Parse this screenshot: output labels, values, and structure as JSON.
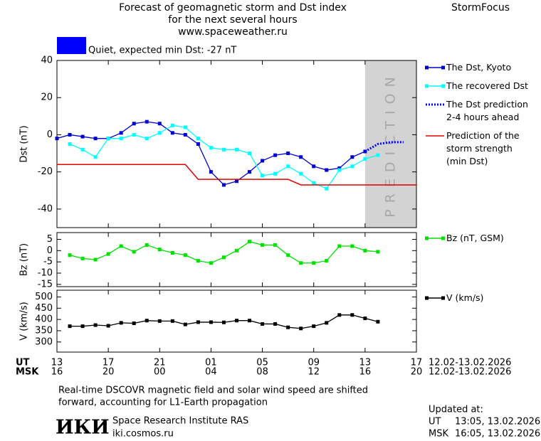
{
  "header": {
    "title_lines": [
      "Forecast of geomagnetic storm and Dst index",
      "for the next several hours",
      "www.spaceweather.ru"
    ],
    "brand": "StormFocus",
    "status": "Quiet, expected min Dst: -27 nT",
    "status_color": "#0000ff"
  },
  "chart_data": [
    {
      "type": "line",
      "y_label": "Dst (nT)",
      "xlim": [
        0,
        28
      ],
      "xticks": [
        0,
        4,
        8,
        12,
        16,
        20,
        24,
        28
      ],
      "ylim": [
        -50,
        40
      ],
      "yticks": [
        -40,
        -20,
        0,
        20,
        40
      ],
      "region": [
        24,
        28
      ],
      "region_color": "#d3d3d3",
      "region_label": "PREDICTION",
      "series": [
        {
          "name": "The Dst, Kyoto",
          "color": "#0000cc",
          "markers": true,
          "x": [
            0,
            1,
            2,
            3,
            4,
            5,
            6,
            7,
            8,
            9,
            10,
            11,
            12,
            13,
            14,
            15,
            16,
            17,
            18,
            19,
            20,
            21,
            22,
            23,
            24
          ],
          "values": [
            -2,
            0,
            -1,
            -2,
            -2,
            1,
            6,
            7,
            6,
            1,
            0,
            -5,
            -20,
            -27,
            -25,
            -20,
            -14,
            -11,
            -10,
            -12,
            -17,
            -19,
            -18,
            -12,
            -9
          ]
        },
        {
          "name": "The recovered Dst",
          "color": "#00ffff",
          "markers": true,
          "x": [
            1,
            2,
            3,
            4,
            5,
            6,
            7,
            8,
            9,
            10,
            11,
            12,
            13,
            14,
            15,
            16,
            17,
            18,
            19,
            20,
            21,
            22,
            23,
            24,
            25
          ],
          "values": [
            -5,
            -8,
            -12,
            -2,
            -2,
            0,
            -2,
            1,
            5,
            4,
            -2,
            -7,
            -8,
            -8,
            -10,
            -22,
            -21,
            -17,
            -21,
            -26,
            -29,
            -19,
            -17,
            -13,
            -11
          ]
        },
        {
          "name": "The Dst prediction 2-4 hours ahead",
          "color": "#0000ff",
          "markers": false,
          "dash": "2,2",
          "width": 3,
          "x": [
            24,
            25,
            26,
            27
          ],
          "values": [
            -9,
            -5,
            -4,
            -4
          ]
        },
        {
          "name": "Prediction of the storm strength (min Dst)",
          "color": "#e00000",
          "markers": false,
          "width": 1.5,
          "x": [
            0,
            10,
            11,
            18,
            19,
            28
          ],
          "values": [
            -16,
            -16,
            -24,
            -24,
            -27,
            -27
          ]
        }
      ]
    },
    {
      "type": "line",
      "y_label": "Bz (nT)",
      "xlim": [
        0,
        28
      ],
      "xticks": [
        0,
        4,
        8,
        12,
        16,
        20,
        24,
        28
      ],
      "ylim": [
        -16,
        8
      ],
      "yticks": [
        -15,
        -10,
        -5,
        0,
        5
      ],
      "series": [
        {
          "name": "Bz (nT, GSM)",
          "color": "#00e000",
          "markers": true,
          "x": [
            1,
            2,
            3,
            4,
            5,
            6,
            7,
            8,
            9,
            10,
            11,
            12,
            13,
            14,
            15,
            16,
            17,
            18,
            19,
            20,
            21,
            22,
            23,
            24,
            25
          ],
          "values": [
            -2,
            -3.5,
            -4,
            -1.5,
            2,
            -0.5,
            2.5,
            0.5,
            -1,
            -2,
            -4.5,
            -5.5,
            -3,
            0,
            4,
            2.5,
            2.5,
            -2,
            -5.5,
            -5.5,
            -4.5,
            2,
            2,
            0,
            -0.5
          ]
        }
      ]
    },
    {
      "type": "line",
      "y_label": "V (km/s)",
      "xlim": [
        0,
        28
      ],
      "xticks": [
        {
          "value": 0,
          "label": "13"
        },
        {
          "value": 4,
          "label": "17"
        },
        {
          "value": 8,
          "label": "21"
        },
        {
          "value": 12,
          "label": "01"
        },
        {
          "value": 16,
          "label": "05"
        },
        {
          "value": 20,
          "label": "09"
        },
        {
          "value": 24,
          "label": "13"
        },
        {
          "value": 28,
          "label": "17"
        }
      ],
      "xticks_msk": [
        {
          "value": 0,
          "label": "16"
        },
        {
          "value": 4,
          "label": "20"
        },
        {
          "value": 8,
          "label": "00"
        },
        {
          "value": 12,
          "label": "04"
        },
        {
          "value": 16,
          "label": "08"
        },
        {
          "value": 20,
          "label": "12"
        },
        {
          "value": 24,
          "label": "16"
        },
        {
          "value": 28,
          "label": "20"
        }
      ],
      "x_label": "UT",
      "x_label_msk": "MSK",
      "date_range": "12.02-13.02.2026",
      "date_range_msk": "12.02-13.02.2026",
      "ylim": [
        255,
        530
      ],
      "yticks": [
        300,
        350,
        400,
        450,
        500
      ],
      "series": [
        {
          "name": "V (km/s)",
          "color": "#000000",
          "markers": true,
          "x": [
            1,
            2,
            3,
            4,
            5,
            6,
            7,
            8,
            9,
            10,
            11,
            12,
            13,
            14,
            15,
            16,
            17,
            18,
            19,
            20,
            21,
            22,
            23,
            24,
            25
          ],
          "values": [
            370,
            370,
            375,
            372,
            385,
            383,
            395,
            393,
            393,
            378,
            388,
            388,
            387,
            395,
            395,
            380,
            380,
            365,
            360,
            370,
            385,
            420,
            420,
            405,
            390
          ]
        }
      ]
    }
  ],
  "footer": {
    "note": [
      "Real-time DSCOVR magnetic field and solar wind speed are shifted",
      "forward, accounting for L1-Earth propagation"
    ],
    "logo": "ИКИ",
    "institute": "Space Research Institute RAS",
    "site": "iki.cosmos.ru",
    "updated": "Updated at:",
    "updated_ut_label": "UT",
    "updated_ut": "13:05, 13.02.2026",
    "updated_msk_label": "MSK",
    "updated_msk": "16:05, 13.02.2026"
  }
}
